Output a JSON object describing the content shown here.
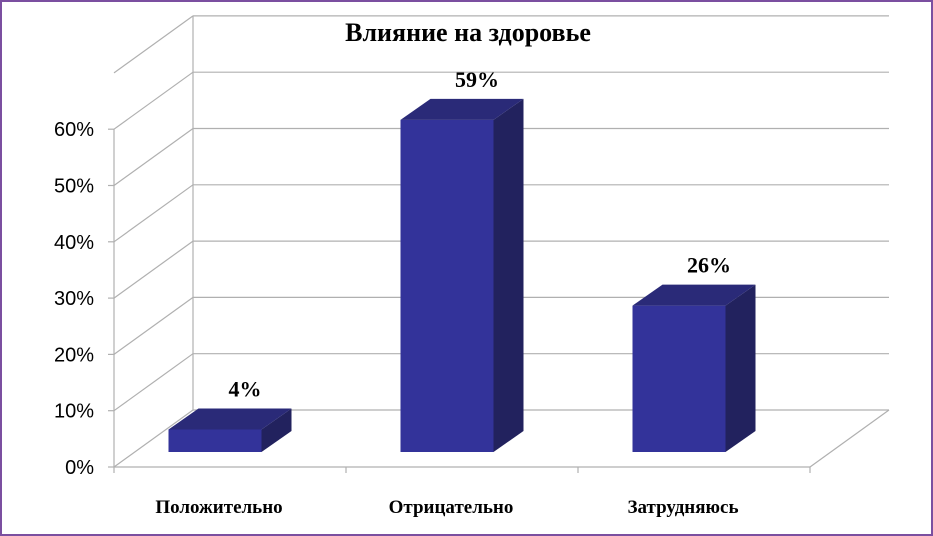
{
  "chart_data": {
    "type": "bar",
    "title": "Влияние на здоровье",
    "categories": [
      "Положительно",
      "Отрицательно",
      "Затрудняюсь"
    ],
    "values": [
      4,
      59,
      26
    ],
    "data_labels": [
      "4%",
      "59%",
      "26%"
    ],
    "y_ticks": [
      "0%",
      "10%",
      "20%",
      "30%",
      "40%",
      "50%",
      "60%"
    ],
    "ylim": [
      0,
      60
    ],
    "grid": true,
    "three_d": true,
    "legend": "none",
    "colors": {
      "bar_front": "#33339a",
      "bar_side": "#22225e",
      "bar_top": "#2a2a78",
      "grid": "#b0b0b0",
      "frame": "#7b4fa0"
    }
  }
}
